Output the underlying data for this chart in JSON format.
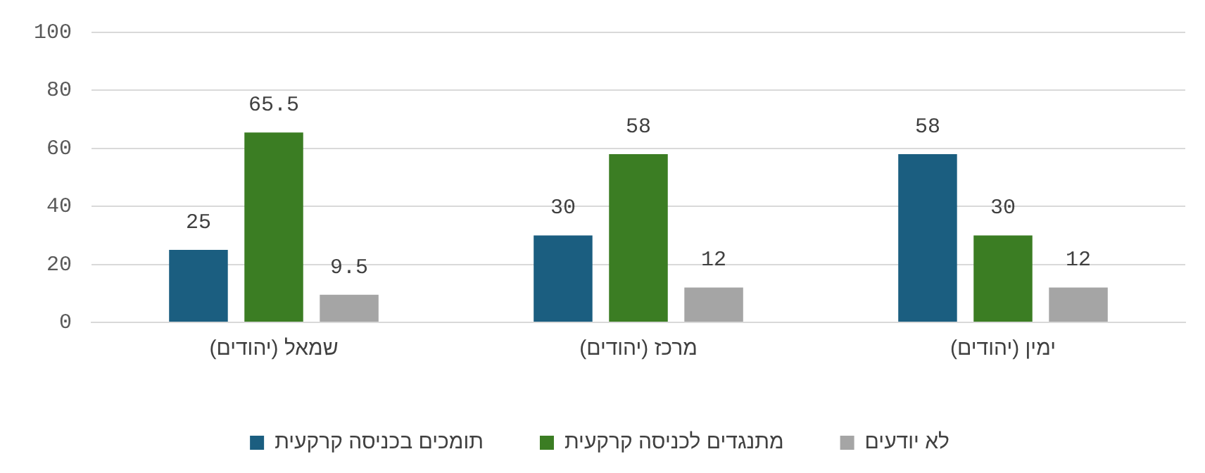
{
  "chart_data": {
    "type": "bar",
    "categories": [
      "שמאל (יהודים)",
      "מרכז (יהודים)",
      "ימין (יהודים)"
    ],
    "series": [
      {
        "name": "תומכים בכניסה קרקעית",
        "color": "#1b5e80",
        "values": [
          25,
          30,
          58
        ]
      },
      {
        "name": "מתנגדים לכניסה קרקעית",
        "color": "#3b7d23",
        "values": [
          65.5,
          58,
          30
        ]
      },
      {
        "name": "לא יודעים",
        "color": "#a5a5a5",
        "values": [
          9.5,
          12,
          12
        ]
      }
    ],
    "ylim": [
      0,
      100
    ],
    "yticks": [
      0,
      20,
      40,
      60,
      80,
      100
    ],
    "grid": "y",
    "legend": "bottom",
    "data_labels": true
  }
}
